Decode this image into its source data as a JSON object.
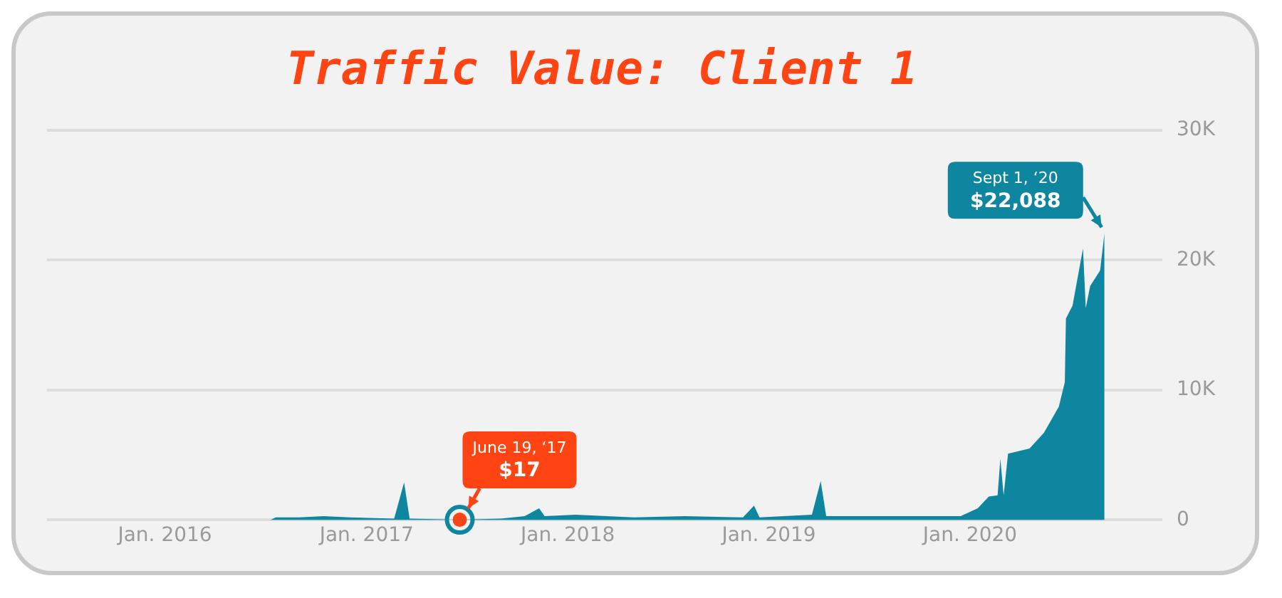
{
  "chart_data": {
    "type": "area",
    "title": "Traffic Value: Client 1",
    "x": [
      "2016-07-10",
      "2016-07-20",
      "2016-09-01",
      "2016-10-15",
      "2016-12-01",
      "2017-02-20",
      "2017-03-10",
      "2017-03-20",
      "2017-06-19",
      "2017-09-01",
      "2017-10-15",
      "2017-11-10",
      "2017-11-20",
      "2018-01-15",
      "2018-05-01",
      "2018-08-01",
      "2018-11-15",
      "2018-12-05",
      "2018-12-15",
      "2019-03-20",
      "2019-04-05",
      "2019-04-15",
      "2019-08-01",
      "2019-11-01",
      "2019-12-15",
      "2020-01-15",
      "2020-02-04",
      "2020-02-20",
      "2020-02-25",
      "2020-03-02",
      "2020-03-10",
      "2020-04-18",
      "2020-05-14",
      "2020-06-10",
      "2020-06-21",
      "2020-06-23",
      "2020-07-05",
      "2020-07-24",
      "2020-07-29",
      "2020-08-06",
      "2020-08-24",
      "2020-09-01"
    ],
    "series": [
      {
        "color": "#0e86a0",
        "values": [
          0,
          200,
          200,
          300,
          200,
          100,
          2900,
          100,
          17,
          100,
          300,
          900,
          300,
          400,
          200,
          300,
          200,
          1100,
          200,
          400,
          3000,
          300,
          300,
          300,
          300,
          900,
          1800,
          1900,
          4700,
          1900,
          5100,
          5500,
          6700,
          8700,
          10600,
          15500,
          16500,
          20900,
          16300,
          18000,
          19200,
          22088
        ]
      }
    ],
    "xlim": [
      "2015-06-01",
      "2020-12-15"
    ],
    "xticks": [
      {
        "value": "2016-01-01",
        "label": "Jan. 2016"
      },
      {
        "value": "2017-01-01",
        "label": "Jan. 2017"
      },
      {
        "value": "2018-01-01",
        "label": "Jan. 2018"
      },
      {
        "value": "2019-01-01",
        "label": "Jan. 2019"
      },
      {
        "value": "2020-01-01",
        "label": "Jan. 2020"
      }
    ],
    "ylim": [
      0,
      30000
    ],
    "yticks": [
      {
        "value": 0,
        "label": "0"
      },
      {
        "value": 10000,
        "label": "10K"
      },
      {
        "value": 20000,
        "label": "20K"
      },
      {
        "value": 30000,
        "label": "30K"
      }
    ],
    "grid": "y",
    "legend": false,
    "annotations": [
      {
        "text": "June 19, ‘17\n$17",
        "x": "2017-06-19",
        "y": 17
      },
      {
        "text": "Sept 1, ‘20\n$22,088",
        "x": "2020-09-01",
        "y": 22088
      }
    ]
  }
}
